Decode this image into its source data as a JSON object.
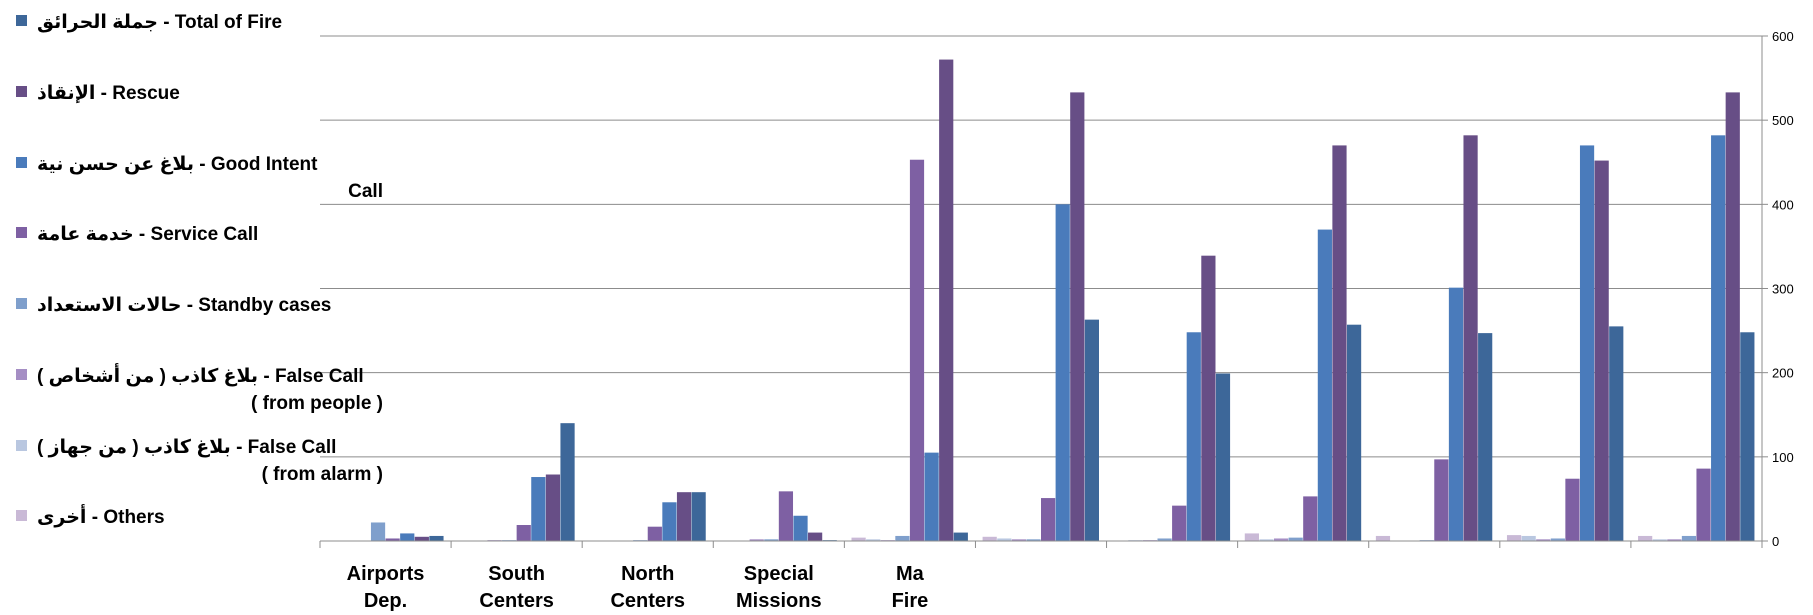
{
  "chart_data": {
    "type": "bar",
    "categories": [
      [
        "Airports",
        "Dep."
      ],
      [
        "South",
        "Centers"
      ],
      [
        "North",
        "Centers"
      ],
      [
        "Special",
        "Missions"
      ],
      [
        "Ma",
        "Fire"
      ],
      [
        "",
        ""
      ],
      [
        "",
        ""
      ],
      [
        "",
        ""
      ],
      [
        "",
        ""
      ],
      [
        "",
        ""
      ],
      [
        "",
        ""
      ]
    ],
    "series": [
      {
        "name": [
          "أخرى  -  Others"
        ],
        "color": "#c9b9d6",
        "values": [
          0,
          0,
          0,
          0,
          4,
          5,
          0,
          9,
          6,
          7,
          6
        ]
      },
      {
        "name": [
          "بلاغ كاذب ( من جهاز )  -  False  Call",
          "( from alarm )"
        ],
        "color": "#b9c7e0",
        "values": [
          0,
          0,
          0,
          0,
          2,
          3,
          1,
          2,
          0,
          6,
          2
        ]
      },
      {
        "name": [
          "بلاغ كاذب ( من أشخاص )  -  False  Call",
          "( from people )"
        ],
        "color": "#a58ec4",
        "values": [
          0,
          1,
          0,
          2,
          1,
          2,
          1,
          3,
          0,
          2,
          2
        ]
      },
      {
        "name": [
          "حالات الاستعداد  -  Standby cases"
        ],
        "color": "#7f9fcc",
        "values": [
          22,
          1,
          1,
          2,
          6,
          2,
          3,
          4,
          1,
          3,
          6
        ]
      },
      {
        "name": [
          "خدمة عامة  -  Service  Call"
        ],
        "color": "#7e60a3",
        "values": [
          3,
          19,
          17,
          59,
          453,
          51,
          42,
          53,
          97,
          74,
          86
        ]
      },
      {
        "name": [
          "بلاغ عن حسن نية  -  Good  Intent",
          "Call"
        ],
        "color": "#4a7bbb",
        "values": [
          9,
          76,
          46,
          30,
          105,
          400,
          248,
          370,
          301,
          470,
          482
        ]
      },
      {
        "name": [
          "الإنقاذ  -  Rescue"
        ],
        "color": "#674e86",
        "values": [
          5,
          79,
          58,
          10,
          572,
          533,
          339,
          470,
          482,
          452,
          533
        ]
      },
      {
        "name": [
          "جملة الحرائق  -  Total of  Fire"
        ],
        "color": "#3d6799",
        "values": [
          6,
          140,
          58,
          1,
          10,
          263,
          199,
          257,
          247,
          255,
          248
        ]
      }
    ],
    "legend_order": [
      7,
      6,
      5,
      4,
      3,
      2,
      1,
      0
    ],
    "ylim": [
      0,
      600
    ],
    "yticks": [
      "0",
      "100",
      "200",
      "300",
      "400",
      "500",
      "600"
    ],
    "y_axis_side": "right",
    "legend_position": "left",
    "grid": true
  }
}
